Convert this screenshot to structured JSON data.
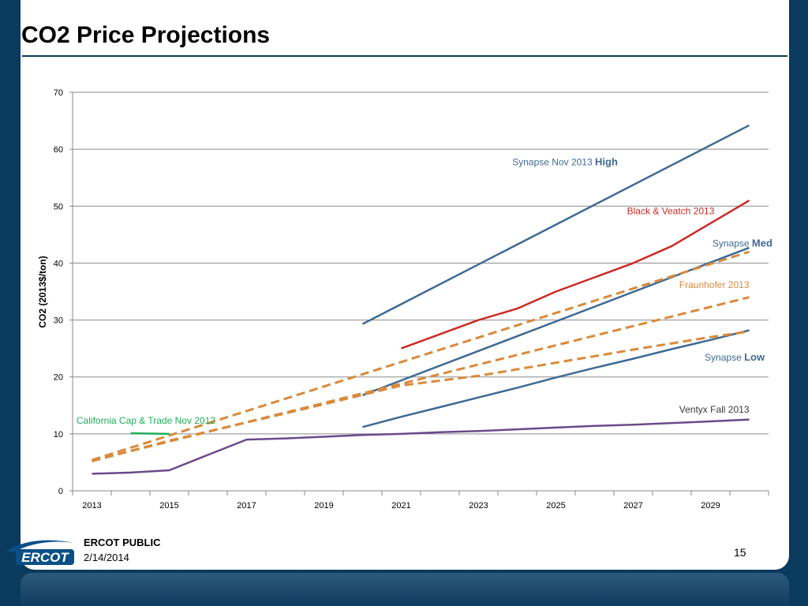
{
  "slide": {
    "title": "CO2 Price Projections",
    "footer_label": "ERCOT PUBLIC",
    "footer_date": "2/14/2014",
    "page_number": "15",
    "logo_text": "ERCOT"
  },
  "colors": {
    "background": "#0a3a5e",
    "synapse": "#3f6a93",
    "black_veatch": "#cc2a24",
    "fraunhofer": "#d98a3c",
    "ventyx": "#6b4a8a",
    "california": "#1fae5a"
  },
  "chart_data": {
    "type": "line",
    "title": "",
    "xlabel": "",
    "ylabel": "CO2 (2013$/ton)",
    "xlim": [
      2012.5,
      2030.5
    ],
    "ylim": [
      0,
      70
    ],
    "yticks": [
      0,
      10,
      20,
      30,
      40,
      50,
      60,
      70
    ],
    "xticks": [
      2013,
      2015,
      2017,
      2019,
      2021,
      2023,
      2025,
      2027,
      2029
    ],
    "grid": "horizontal",
    "series": [
      {
        "key": "syn_high",
        "color": "#3f6a93",
        "dash": false,
        "x": [
          2020,
          2030
        ],
        "values": [
          29.3,
          64.2
        ]
      },
      {
        "key": "bv",
        "color": "#cc2a24",
        "dash": false,
        "x": [
          2021,
          2022,
          2023,
          2024,
          2025,
          2026,
          2027,
          2028,
          2029,
          2030
        ],
        "values": [
          25.0,
          27.5,
          30.0,
          32.0,
          35.0,
          37.5,
          40.0,
          43.0,
          47.0,
          51.0
        ]
      },
      {
        "key": "syn_med",
        "color": "#3f6a93",
        "dash": false,
        "x": [
          2020,
          2030
        ],
        "values": [
          16.8,
          42.7
        ]
      },
      {
        "key": "syn_low",
        "color": "#3f6a93",
        "dash": false,
        "x": [
          2020,
          2021,
          2022,
          2023,
          2024,
          2025,
          2026,
          2027,
          2028,
          2029,
          2030
        ],
        "values": [
          11.2,
          13.0,
          14.7,
          16.4,
          18.1,
          19.9,
          21.6,
          23.2,
          24.9,
          26.5,
          28.2
        ]
      },
      {
        "key": "fh_1",
        "color": "#d98a3c",
        "dash": true,
        "x": [
          2013,
          2030
        ],
        "values": [
          5.4,
          42.0
        ]
      },
      {
        "key": "fh_2",
        "color": "#d98a3c",
        "dash": true,
        "x": [
          2013,
          2030
        ],
        "values": [
          5.3,
          34.0
        ]
      },
      {
        "key": "fh_3",
        "color": "#d98a3c",
        "dash": true,
        "x": [
          2013,
          2015,
          2017,
          2019,
          2021,
          2023,
          2025,
          2027,
          2029,
          2030
        ],
        "values": [
          5.2,
          8.8,
          12.0,
          15.2,
          18.5,
          20.2,
          22.5,
          24.8,
          27.0,
          28.0
        ]
      },
      {
        "key": "ventyx",
        "color": "#6b4a8a",
        "dash": false,
        "x": [
          2013,
          2014,
          2015,
          2016,
          2017,
          2018,
          2019,
          2020,
          2021,
          2022,
          2023,
          2024,
          2025,
          2026,
          2027,
          2028,
          2029,
          2030
        ],
        "values": [
          3.0,
          3.2,
          3.6,
          6.3,
          9.0,
          9.2,
          9.5,
          9.8,
          10.0,
          10.3,
          10.5,
          10.8,
          11.1,
          11.4,
          11.6,
          11.9,
          12.2,
          12.5
        ]
      },
      {
        "key": "cal",
        "color": "#1fae5a",
        "dash": false,
        "x": [
          2014,
          2015
        ],
        "values": [
          10.1,
          10.0
        ]
      }
    ],
    "annotations": [
      {
        "key": "syn_high",
        "parts": [
          "Synapse Nov 2013 ",
          "High"
        ],
        "color": "#3f6a93",
        "x": 2026.6,
        "y": 57.2,
        "anchor": "end"
      },
      {
        "key": "bv",
        "parts": [
          "Black & Veatch 2013",
          ""
        ],
        "color": "#cc2a24",
        "x": 2029.1,
        "y": 48.6,
        "anchor": "end"
      },
      {
        "key": "syn_med",
        "parts": [
          "Synapse ",
          "Med"
        ],
        "color": "#3f6a93",
        "x": 2030.6,
        "y": 42.9,
        "anchor": "end"
      },
      {
        "key": "fraunhofer",
        "parts": [
          "Fraunhofer  2013",
          ""
        ],
        "color": "#d98a3c",
        "x": 2030.0,
        "y": 35.6,
        "anchor": "end"
      },
      {
        "key": "syn_low",
        "parts": [
          "Synapse ",
          "Low"
        ],
        "color": "#3f6a93",
        "x": 2030.4,
        "y": 22.9,
        "anchor": "end"
      },
      {
        "key": "ventyx",
        "parts": [
          "Ventyx Fall 2013",
          ""
        ],
        "color": "#3a3a3a",
        "x": 2030.0,
        "y": 13.7,
        "anchor": "end"
      },
      {
        "key": "cal",
        "parts": [
          "California Cap & Trade Nov 2012",
          ""
        ],
        "color": "#1fae5a",
        "x": 2012.6,
        "y": 11.8,
        "anchor": "start"
      }
    ]
  }
}
